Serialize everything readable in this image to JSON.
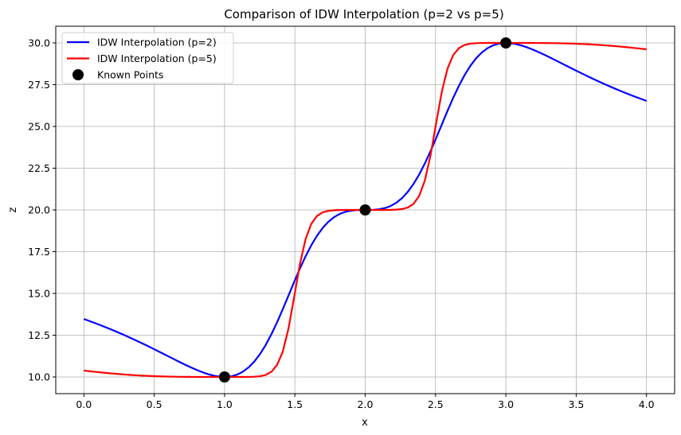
{
  "chart_data": {
    "type": "line",
    "title": "Comparison of IDW Interpolation (p=2 vs p=5)",
    "xlabel": "x",
    "ylabel": "z",
    "xlim": [
      -0.2,
      4.2
    ],
    "ylim": [
      9.0,
      31.0
    ],
    "xticks": [
      0.0,
      0.5,
      1.0,
      1.5,
      2.0,
      2.5,
      3.0,
      3.5,
      4.0
    ],
    "xtick_labels": [
      "0.0",
      "0.5",
      "1.0",
      "1.5",
      "2.0",
      "2.5",
      "3.0",
      "3.5",
      "4.0"
    ],
    "yticks": [
      10.0,
      12.5,
      15.0,
      17.5,
      20.0,
      22.5,
      25.0,
      27.5,
      30.0
    ],
    "ytick_labels": [
      "10.0",
      "12.5",
      "15.0",
      "17.5",
      "20.0",
      "22.5",
      "25.0",
      "27.5",
      "30.0"
    ],
    "grid": true,
    "legend_position": "top-left",
    "known_points": {
      "name": "Known Points",
      "color": "#000000",
      "x": [
        1.0,
        2.0,
        3.0
      ],
      "z": [
        10.0,
        20.0,
        30.0
      ]
    },
    "series": [
      {
        "name": "IDW Interpolation (p=2)",
        "color": "#0000ff",
        "power": 2
      },
      {
        "name": "IDW Interpolation (p=5)",
        "color": "#ff0000",
        "power": 5
      }
    ],
    "x_range": [
      0.0,
      4.0
    ]
  }
}
